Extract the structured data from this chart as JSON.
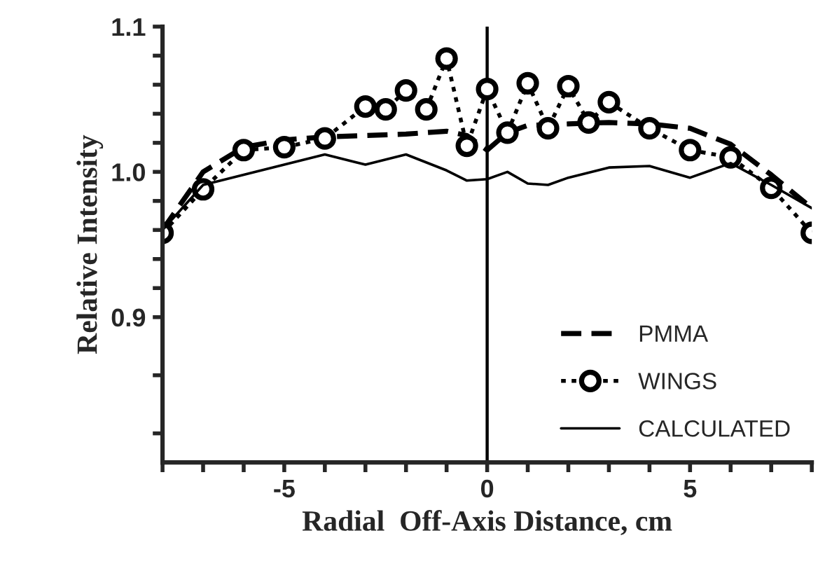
{
  "chart_data": {
    "type": "line",
    "xlabel": "Radial  Off-Axis Distance, cm",
    "ylabel": "Relative Intensity",
    "xlim": [
      -8,
      8
    ],
    "xticks": [
      {
        "value": -8,
        "label": null
      },
      {
        "value": -7,
        "label": null
      },
      {
        "value": -6,
        "label": null
      },
      -5,
      {
        "value": -4,
        "label": null
      },
      {
        "value": -3,
        "label": null
      },
      {
        "value": -2,
        "label": null
      },
      {
        "value": -1,
        "label": null
      },
      0,
      {
        "value": 1,
        "label": null
      },
      {
        "value": 2,
        "label": null
      },
      {
        "value": 3,
        "label": null
      },
      {
        "value": 4,
        "label": null
      },
      5,
      {
        "value": 6,
        "label": null
      },
      {
        "value": 7,
        "label": null
      },
      {
        "value": 8,
        "label": null
      }
    ],
    "ylim": [
      0.8,
      1.1
    ],
    "yticks": [
      {
        "value": 0.82,
        "label": null
      },
      {
        "value": 0.86,
        "label": null
      },
      0.9,
      {
        "value": 0.92,
        "label": null
      },
      {
        "value": 0.94,
        "label": null
      },
      {
        "value": 0.96,
        "label": null
      },
      {
        "value": 0.98,
        "label": null
      },
      {
        "value": 1.0,
        "label": "1.0"
      },
      {
        "value": 1.02,
        "label": null
      },
      {
        "value": 1.04,
        "label": null
      },
      {
        "value": 1.06,
        "label": null
      },
      {
        "value": 1.08,
        "label": null
      },
      1.1
    ],
    "grid": false,
    "legend": "bottom right",
    "ref_lines": [
      {
        "axis": "x",
        "value": 0,
        "color": "#000000",
        "line_style": "solid"
      }
    ],
    "series": [
      {
        "name": "PMMA",
        "color": "#000000",
        "line_style": "dashed",
        "marker": "none",
        "x": [
          -8,
          -7,
          -6,
          -5,
          -4,
          -3,
          -2,
          -1,
          -0.5,
          0,
          0.5,
          1,
          2,
          3,
          4,
          5,
          6,
          7,
          8
        ],
        "values": [
          0.96,
          1.0,
          1.017,
          1.022,
          1.024,
          1.025,
          1.026,
          1.028,
          1.025,
          1.015,
          1.027,
          1.032,
          1.033,
          1.034,
          1.033,
          1.03,
          1.019,
          0.998,
          0.975
        ]
      },
      {
        "name": "WINGS",
        "color": "#000000",
        "line_style": "dotted",
        "marker": "circle",
        "x": [
          -8,
          -7,
          -6,
          -5,
          -4,
          -3,
          -2.5,
          -2,
          -1.5,
          -1,
          -0.5,
          0,
          0.5,
          1,
          1.5,
          2,
          2.5,
          3,
          4,
          5,
          6,
          7,
          8
        ],
        "values": [
          0.958,
          0.988,
          1.015,
          1.017,
          1.023,
          1.045,
          1.043,
          1.056,
          1.043,
          1.078,
          1.018,
          1.057,
          1.027,
          1.061,
          1.03,
          1.059,
          1.034,
          1.048,
          1.03,
          1.015,
          1.01,
          0.989,
          0.958
        ]
      },
      {
        "name": "CALCULATED",
        "color": "#000000",
        "line_style": "solid",
        "marker": "none",
        "x": [
          -8,
          -7,
          -6,
          -5,
          -4,
          -3,
          -2,
          -1,
          -0.5,
          0,
          0.5,
          1,
          1.5,
          2,
          3,
          4,
          5,
          6,
          7,
          8
        ],
        "values": [
          0.96,
          0.991,
          0.998,
          1.005,
          1.012,
          1.005,
          1.012,
          1.001,
          0.994,
          0.995,
          1.0,
          0.992,
          0.991,
          0.996,
          1.003,
          1.004,
          0.996,
          1.006,
          0.991,
          0.975
        ]
      }
    ]
  }
}
